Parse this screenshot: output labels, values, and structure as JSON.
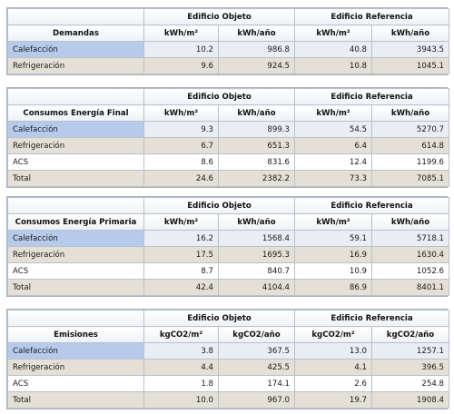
{
  "header": {
    "building_object": "Edificio Objeto",
    "building_reference": "Edificio Referencia"
  },
  "demandas": {
    "title": "Demandas",
    "units": [
      "kWh/m²",
      "kWh/año",
      "kWh/m²",
      "kWh/año"
    ],
    "rows": [
      {
        "label": "Calefacción",
        "values": [
          "10.2",
          "986.8",
          "40.8",
          "3943.5"
        ]
      },
      {
        "label": "Refrigeración",
        "values": [
          "9.6",
          "924.5",
          "10.8",
          "1045.1"
        ]
      }
    ]
  },
  "consumos_final": {
    "title": "Consumos Energía Final",
    "units": [
      "kWh/m²",
      "kWh/año",
      "kWh/m²",
      "kWh/año"
    ],
    "rows": [
      {
        "label": "Calefacción",
        "values": [
          "9.3",
          "899.3",
          "54.5",
          "5270.7"
        ]
      },
      {
        "label": "Refrigeración",
        "values": [
          "6.7",
          "651.3",
          "6.4",
          "614.8"
        ]
      },
      {
        "label": "ACS",
        "values": [
          "8.6",
          "831.6",
          "12.4",
          "1199.6"
        ]
      },
      {
        "label": "Total",
        "values": [
          "24.6",
          "2382.2",
          "73.3",
          "7085.1"
        ]
      }
    ]
  },
  "consumos_primaria": {
    "title": "Consumos Energía Primaria",
    "units": [
      "kWh/m²",
      "kWh/año",
      "kWh/m²",
      "kWh/año"
    ],
    "rows": [
      {
        "label": "Calefacción",
        "values": [
          "16.2",
          "1568.4",
          "59.1",
          "5718.1"
        ]
      },
      {
        "label": "Refrigeración",
        "values": [
          "17.5",
          "1695.3",
          "16.9",
          "1630.4"
        ]
      },
      {
        "label": "ACS",
        "values": [
          "8.7",
          "840.7",
          "10.9",
          "1052.6"
        ]
      },
      {
        "label": "Total",
        "values": [
          "42.4",
          "4104.4",
          "86.9",
          "8401.1"
        ]
      }
    ]
  },
  "emisiones": {
    "title": "Emisiones",
    "units": [
      "kgCO2/m²",
      "kgCO2/año",
      "kgCO2/m²",
      "kgCO2/año"
    ],
    "rows": [
      {
        "label": "Calefacción",
        "values": [
          "3.8",
          "367.5",
          "13.0",
          "1257.1"
        ]
      },
      {
        "label": "Refrigeración",
        "values": [
          "4.4",
          "425.5",
          "4.1",
          "396.5"
        ]
      },
      {
        "label": "ACS",
        "values": [
          "1.8",
          "174.1",
          "2.6",
          "254.8"
        ]
      },
      {
        "label": "Total",
        "values": [
          "10.0",
          "967.0",
          "19.7",
          "1908.4"
        ]
      }
    ]
  }
}
